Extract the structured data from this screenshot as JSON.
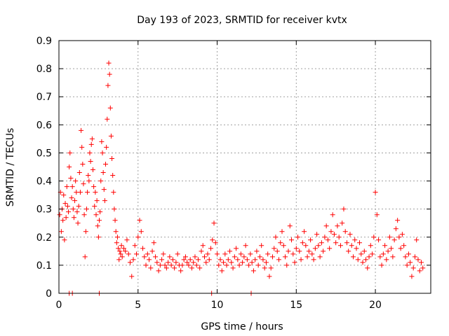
{
  "chart_data": {
    "type": "scatter",
    "title": "Day 193 of 2023, SRMTID for receiver kvtx",
    "xlabel": "GPS time / hours",
    "ylabel": "SRMTID / TECUs",
    "xlim": [
      0,
      23.5
    ],
    "ylim": [
      0,
      0.9
    ],
    "xticks": [
      0,
      5,
      10,
      15,
      20
    ],
    "xtick_labels": [
      "0",
      "5",
      "10",
      "15",
      "20"
    ],
    "yticks": [
      0,
      0.1,
      0.2,
      0.3,
      0.4,
      0.5,
      0.6,
      0.7,
      0.8,
      0.9
    ],
    "ytick_labels": [
      "0",
      "0.1",
      "0.2",
      "0.3",
      "0.4",
      "0.5",
      "0.6",
      "0.7",
      "0.8",
      "0.9"
    ],
    "grid": true,
    "marker": "+",
    "color": "#ff0000",
    "series": [
      {
        "name": "SRMTID",
        "points": [
          [
            0.05,
            0.28
          ],
          [
            0.1,
            0.36
          ],
          [
            0.15,
            0.22
          ],
          [
            0.2,
            0.3
          ],
          [
            0.25,
            0.26
          ],
          [
            0.3,
            0.35
          ],
          [
            0.35,
            0.19
          ],
          [
            0.4,
            0.32
          ],
          [
            0.45,
            0.27
          ],
          [
            0.5,
            0.38
          ],
          [
            0.55,
            0.31
          ],
          [
            0.6,
            0.29
          ],
          [
            0.65,
            0.45
          ],
          [
            0.7,
            0.5
          ],
          [
            0.75,
            0.41
          ],
          [
            0.8,
            0.34
          ],
          [
            0.85,
            0.38
          ],
          [
            0.9,
            0.3
          ],
          [
            0.95,
            0.27
          ],
          [
            1.0,
            0.33
          ],
          [
            1.05,
            0.4
          ],
          [
            1.1,
            0.36
          ],
          [
            1.15,
            0.29
          ],
          [
            1.2,
            0.25
          ],
          [
            1.25,
            0.31
          ],
          [
            1.3,
            0.43
          ],
          [
            1.35,
            0.36
          ],
          [
            1.4,
            0.58
          ],
          [
            1.45,
            0.52
          ],
          [
            1.5,
            0.46
          ],
          [
            1.55,
            0.39
          ],
          [
            1.6,
            0.28
          ],
          [
            1.65,
            0.13
          ],
          [
            1.7,
            0.22
          ],
          [
            1.75,
            0.3
          ],
          [
            1.8,
            0.36
          ],
          [
            1.85,
            0.42
          ],
          [
            1.9,
            0.4
          ],
          [
            1.95,
            0.5
          ],
          [
            2.0,
            0.47
          ],
          [
            2.05,
            0.53
          ],
          [
            2.1,
            0.55
          ],
          [
            2.15,
            0.44
          ],
          [
            2.2,
            0.38
          ],
          [
            2.25,
            0.31
          ],
          [
            2.3,
            0.36
          ],
          [
            2.35,
            0.28
          ],
          [
            2.4,
            0.33
          ],
          [
            2.45,
            0.24
          ],
          [
            2.5,
            0.2
          ],
          [
            2.55,
            0.26
          ],
          [
            2.6,
            0.29
          ],
          [
            2.65,
            0.4
          ],
          [
            2.7,
            0.54
          ],
          [
            2.75,
            0.5
          ],
          [
            2.8,
            0.43
          ],
          [
            2.85,
            0.37
          ],
          [
            2.9,
            0.33
          ],
          [
            2.95,
            0.46
          ],
          [
            3.0,
            0.52
          ],
          [
            3.05,
            0.62
          ],
          [
            3.1,
            0.74
          ],
          [
            3.15,
            0.82
          ],
          [
            3.2,
            0.78
          ],
          [
            3.25,
            0.66
          ],
          [
            3.3,
            0.56
          ],
          [
            3.35,
            0.48
          ],
          [
            3.4,
            0.42
          ],
          [
            3.45,
            0.36
          ],
          [
            3.5,
            0.3
          ],
          [
            3.55,
            0.26
          ],
          [
            3.6,
            0.22
          ],
          [
            3.65,
            0.18
          ],
          [
            3.7,
            0.2
          ],
          [
            3.75,
            0.16
          ],
          [
            3.8,
            0.12
          ],
          [
            3.85,
            0.15
          ],
          [
            3.9,
            0.14
          ],
          [
            3.95,
            0.17
          ],
          [
            4.0,
            0.13
          ],
          [
            4.1,
            0.16
          ],
          [
            4.2,
            0.15
          ],
          [
            4.3,
            0.19
          ],
          [
            4.4,
            0.14
          ],
          [
            4.5,
            0.11
          ],
          [
            4.6,
            0.06
          ],
          [
            4.7,
            0.12
          ],
          [
            4.8,
            0.17
          ],
          [
            4.9,
            0.14
          ],
          [
            5.0,
            0.2
          ],
          [
            5.1,
            0.26
          ],
          [
            5.2,
            0.22
          ],
          [
            5.3,
            0.16
          ],
          [
            5.4,
            0.13
          ],
          [
            5.5,
            0.1
          ],
          [
            5.6,
            0.14
          ],
          [
            5.7,
            0.12
          ],
          [
            5.8,
            0.09
          ],
          [
            5.9,
            0.15
          ],
          [
            6.0,
            0.18
          ],
          [
            6.1,
            0.13
          ],
          [
            6.2,
            0.11
          ],
          [
            6.3,
            0.08
          ],
          [
            6.4,
            0.1
          ],
          [
            6.5,
            0.12
          ],
          [
            6.6,
            0.14
          ],
          [
            6.7,
            0.1
          ],
          [
            6.8,
            0.09
          ],
          [
            6.9,
            0.11
          ],
          [
            7.0,
            0.13
          ],
          [
            7.1,
            0.1
          ],
          [
            7.2,
            0.12
          ],
          [
            7.3,
            0.09
          ],
          [
            7.4,
            0.11
          ],
          [
            7.5,
            0.14
          ],
          [
            7.6,
            0.1
          ],
          [
            7.7,
            0.08
          ],
          [
            7.8,
            0.1
          ],
          [
            7.9,
            0.12
          ],
          [
            8.0,
            0.13
          ],
          [
            8.1,
            0.11
          ],
          [
            8.2,
            0.1
          ],
          [
            8.3,
            0.12
          ],
          [
            8.4,
            0.09
          ],
          [
            8.5,
            0.11
          ],
          [
            8.6,
            0.13
          ],
          [
            8.7,
            0.1
          ],
          [
            8.8,
            0.12
          ],
          [
            8.9,
            0.09
          ],
          [
            9.0,
            0.15
          ],
          [
            9.1,
            0.17
          ],
          [
            9.2,
            0.13
          ],
          [
            9.3,
            0.11
          ],
          [
            9.4,
            0.14
          ],
          [
            9.5,
            0.12
          ],
          [
            9.6,
            0.16
          ],
          [
            9.7,
            0.19
          ],
          [
            9.8,
            0.25
          ],
          [
            9.9,
            0.18
          ],
          [
            10.0,
            0.14
          ],
          [
            10.1,
            0.1
          ],
          [
            10.2,
            0.12
          ],
          [
            10.3,
            0.08
          ],
          [
            10.4,
            0.11
          ],
          [
            10.5,
            0.14
          ],
          [
            10.6,
            0.1
          ],
          [
            10.7,
            0.12
          ],
          [
            10.8,
            0.15
          ],
          [
            10.9,
            0.11
          ],
          [
            11.0,
            0.09
          ],
          [
            11.1,
            0.13
          ],
          [
            11.2,
            0.16
          ],
          [
            11.3,
            0.12
          ],
          [
            11.4,
            0.1
          ],
          [
            11.5,
            0.14
          ],
          [
            11.6,
            0.11
          ],
          [
            11.7,
            0.13
          ],
          [
            11.8,
            0.17
          ],
          [
            11.9,
            0.12
          ],
          [
            12.0,
            0.1
          ],
          [
            12.1,
            0.14
          ],
          [
            12.2,
            0.11
          ],
          [
            12.3,
            0.08
          ],
          [
            12.4,
            0.12
          ],
          [
            12.5,
            0.15
          ],
          [
            12.6,
            0.1
          ],
          [
            12.7,
            0.13
          ],
          [
            12.8,
            0.17
          ],
          [
            12.9,
            0.12
          ],
          [
            13.0,
            0.09
          ],
          [
            13.1,
            0.11
          ],
          [
            13.2,
            0.14
          ],
          [
            13.3,
            0.06
          ],
          [
            13.4,
            0.09
          ],
          [
            13.5,
            0.13
          ],
          [
            13.6,
            0.16
          ],
          [
            13.7,
            0.2
          ],
          [
            13.8,
            0.15
          ],
          [
            13.9,
            0.12
          ],
          [
            14.0,
            0.18
          ],
          [
            14.1,
            0.22
          ],
          [
            14.2,
            0.17
          ],
          [
            14.3,
            0.13
          ],
          [
            14.4,
            0.1
          ],
          [
            14.5,
            0.15
          ],
          [
            14.6,
            0.24
          ],
          [
            14.7,
            0.19
          ],
          [
            14.8,
            0.14
          ],
          [
            14.9,
            0.11
          ],
          [
            15.0,
            0.16
          ],
          [
            15.1,
            0.2
          ],
          [
            15.2,
            0.15
          ],
          [
            15.3,
            0.12
          ],
          [
            15.4,
            0.18
          ],
          [
            15.5,
            0.22
          ],
          [
            15.6,
            0.17
          ],
          [
            15.7,
            0.13
          ],
          [
            15.8,
            0.15
          ],
          [
            15.9,
            0.19
          ],
          [
            16.0,
            0.14
          ],
          [
            16.1,
            0.12
          ],
          [
            16.2,
            0.16
          ],
          [
            16.3,
            0.21
          ],
          [
            16.4,
            0.17
          ],
          [
            16.5,
            0.13
          ],
          [
            16.6,
            0.18
          ],
          [
            16.7,
            0.15
          ],
          [
            16.8,
            0.2
          ],
          [
            16.9,
            0.24
          ],
          [
            17.0,
            0.19
          ],
          [
            17.1,
            0.16
          ],
          [
            17.2,
            0.22
          ],
          [
            17.3,
            0.28
          ],
          [
            17.4,
            0.21
          ],
          [
            17.5,
            0.18
          ],
          [
            17.6,
            0.24
          ],
          [
            17.7,
            0.2
          ],
          [
            17.8,
            0.17
          ],
          [
            17.9,
            0.25
          ],
          [
            18.0,
            0.3
          ],
          [
            18.1,
            0.22
          ],
          [
            18.2,
            0.18
          ],
          [
            18.3,
            0.15
          ],
          [
            18.4,
            0.21
          ],
          [
            18.5,
            0.17
          ],
          [
            18.6,
            0.13
          ],
          [
            18.7,
            0.19
          ],
          [
            18.8,
            0.16
          ],
          [
            18.9,
            0.12
          ],
          [
            19.0,
            0.18
          ],
          [
            19.1,
            0.14
          ],
          [
            19.2,
            0.11
          ],
          [
            19.3,
            0.15
          ],
          [
            19.4,
            0.12
          ],
          [
            19.5,
            0.09
          ],
          [
            19.6,
            0.13
          ],
          [
            19.7,
            0.17
          ],
          [
            19.8,
            0.14
          ],
          [
            19.9,
            0.2
          ],
          [
            20.0,
            0.36
          ],
          [
            20.1,
            0.28
          ],
          [
            20.2,
            0.19
          ],
          [
            20.3,
            0.13
          ],
          [
            20.4,
            0.1
          ],
          [
            20.5,
            0.14
          ],
          [
            20.6,
            0.17
          ],
          [
            20.7,
            0.12
          ],
          [
            20.8,
            0.15
          ],
          [
            20.9,
            0.2
          ],
          [
            21.0,
            0.16
          ],
          [
            21.1,
            0.13
          ],
          [
            21.2,
            0.19
          ],
          [
            21.3,
            0.23
          ],
          [
            21.4,
            0.26
          ],
          [
            21.5,
            0.2
          ],
          [
            21.6,
            0.16
          ],
          [
            21.7,
            0.21
          ],
          [
            21.8,
            0.17
          ],
          [
            21.9,
            0.13
          ],
          [
            22.0,
            0.1
          ],
          [
            22.1,
            0.14
          ],
          [
            22.2,
            0.11
          ],
          [
            22.3,
            0.06
          ],
          [
            22.4,
            0.09
          ],
          [
            22.5,
            0.13
          ],
          [
            22.6,
            0.19
          ],
          [
            22.7,
            0.12
          ],
          [
            22.8,
            0.08
          ],
          [
            22.9,
            0.11
          ],
          [
            23.0,
            0.09
          ],
          [
            0.65,
            0.0
          ],
          [
            0.85,
            0.0
          ],
          [
            2.55,
            0.0
          ],
          [
            9.65,
            0.0
          ],
          [
            12.15,
            0.0
          ]
        ]
      }
    ]
  }
}
